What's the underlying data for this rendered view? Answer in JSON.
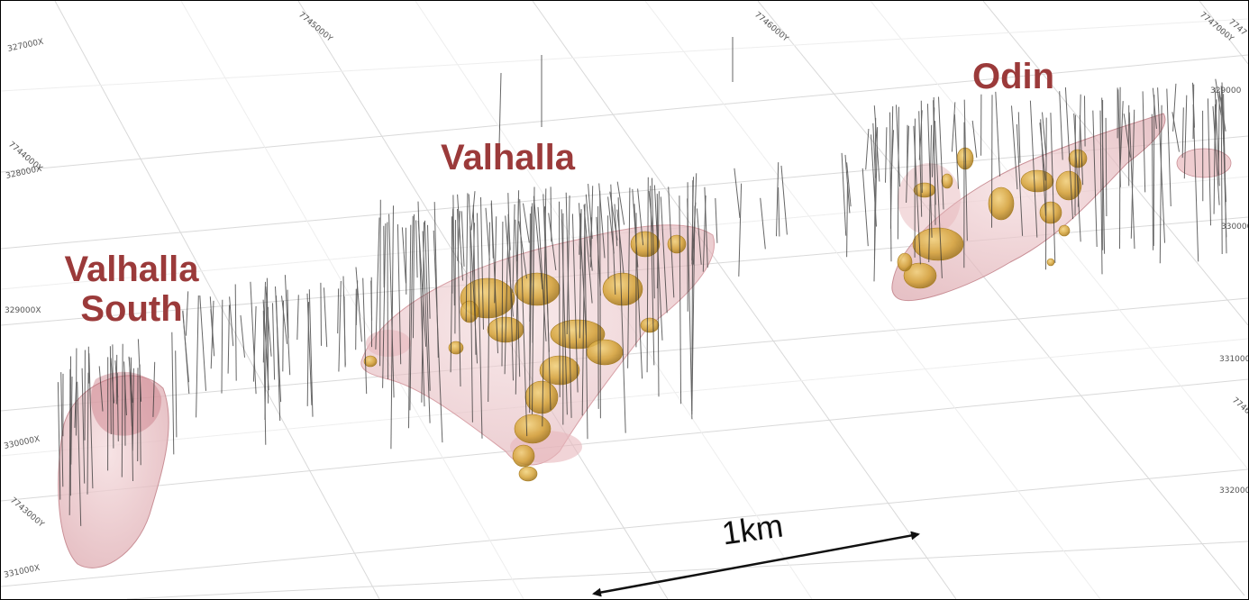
{
  "labels": {
    "valhalla_south_line1": "Valhalla",
    "valhalla_south_line2": "South",
    "valhalla": "Valhalla",
    "odin": "Odin",
    "scale": "1km"
  },
  "grid_labels": {
    "x_327000": "327000X",
    "x_328000": "328000X",
    "x_329000": "329000X",
    "x_330000": "330000X",
    "x_331000": "331000X",
    "y_7744000": "7744000Y",
    "y_7743000": "7743000Y",
    "top_7745000": "7745000Y",
    "top_7746000": "7746000Y",
    "top_7747000": "7747000Y",
    "top_right": "7747",
    "r_329000": "329000",
    "r_330000": "330000",
    "r_331000": "331000",
    "r_332000": "332000",
    "r_7746": "7746"
  },
  "colors": {
    "label": "#9b3a3a",
    "envelope": "#e8b8bc",
    "mineralisation": "#d4a236",
    "drillhole": "#333333",
    "grid": "#d6d6d6"
  }
}
